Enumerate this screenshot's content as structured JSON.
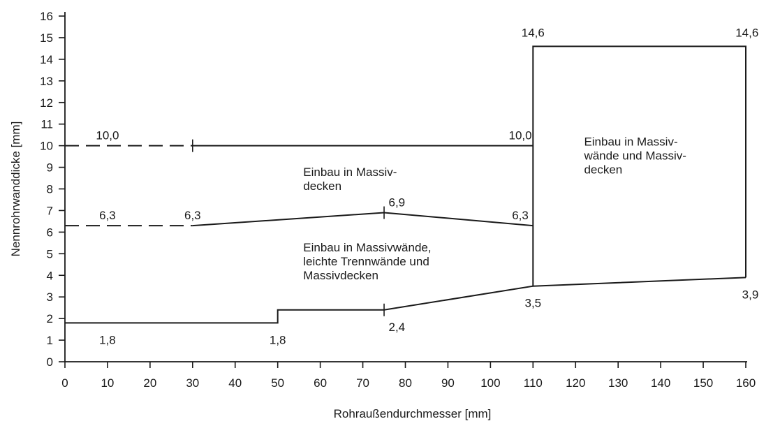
{
  "chart_data": {
    "type": "line",
    "xlabel": "Rohraußendurchmesser [mm]",
    "ylabel": "Nennrohrwanddicke [mm]",
    "xlim": [
      0,
      160
    ],
    "ylim": [
      0,
      16
    ],
    "xticks": [
      0,
      10,
      20,
      30,
      40,
      50,
      60,
      70,
      80,
      90,
      100,
      110,
      120,
      130,
      140,
      150,
      160
    ],
    "yticks": [
      0,
      1,
      2,
      3,
      4,
      5,
      6,
      7,
      8,
      9,
      10,
      11,
      12,
      13,
      14,
      15,
      16
    ],
    "grid": false,
    "series": [
      {
        "segments": [
          {
            "style": "dashed",
            "points": [
              [
                0,
                10.0
              ],
              [
                30,
                10.0
              ]
            ]
          },
          {
            "style": "solid",
            "points": [
              [
                30,
                10.0
              ],
              [
                110,
                10.0
              ]
            ]
          }
        ]
      },
      {
        "segments": [
          {
            "style": "dashed",
            "points": [
              [
                0,
                6.3
              ],
              [
                30,
                6.3
              ]
            ]
          },
          {
            "style": "solid",
            "points": [
              [
                30,
                6.3
              ],
              [
                75,
                6.9
              ],
              [
                110,
                6.3
              ]
            ]
          }
        ]
      },
      {
        "segments": [
          {
            "style": "solid",
            "points": [
              [
                0,
                1.8
              ],
              [
                50,
                1.8
              ],
              [
                50,
                2.4
              ],
              [
                75,
                2.4
              ],
              [
                110,
                3.5
              ],
              [
                160,
                3.9
              ]
            ]
          }
        ]
      },
      {
        "segments": [
          {
            "style": "solid",
            "points": [
              [
                110,
                3.5
              ],
              [
                110,
                14.6
              ],
              [
                160,
                14.6
              ],
              [
                160,
                3.9
              ]
            ]
          }
        ]
      }
    ],
    "markers": [
      [
        30,
        10.0
      ],
      [
        75,
        6.9
      ],
      [
        75,
        2.4
      ]
    ],
    "value_labels": [
      {
        "text": "10,0",
        "x": 10,
        "y": 10.0
      },
      {
        "text": "10,0",
        "x": 107,
        "y": 10.0
      },
      {
        "text": "6,3",
        "x": 10,
        "y": 6.3
      },
      {
        "text": "6,3",
        "x": 30,
        "y": 6.3
      },
      {
        "text": "6,9",
        "x": 78,
        "y": 6.9
      },
      {
        "text": "6,3",
        "x": 107,
        "y": 6.3
      },
      {
        "text": "1,8",
        "x": 10,
        "y": 1.8
      },
      {
        "text": "1,8",
        "x": 50,
        "y": 1.8
      },
      {
        "text": "2,4",
        "x": 78,
        "y": 2.4
      },
      {
        "text": "3,5",
        "x": 110,
        "y": 3.5
      },
      {
        "text": "3,9",
        "x": 163,
        "y": 3.9
      },
      {
        "text": "14,6",
        "x": 110,
        "y": 14.6
      },
      {
        "text": "14,6",
        "x": 163,
        "y": 14.6
      }
    ],
    "annotations": [
      {
        "lines": [
          "Einbau in Massiv-",
          "decken"
        ],
        "x": 56,
        "y": 8.6
      },
      {
        "lines": [
          "Einbau in Massivwände,",
          "leichte Trennwände und",
          "Massivdecken"
        ],
        "x": 56,
        "y": 5.1
      },
      {
        "lines": [
          "Einbau in Massiv-",
          "wände und Massiv-",
          "decken"
        ],
        "x": 122,
        "y": 10.0
      }
    ]
  }
}
